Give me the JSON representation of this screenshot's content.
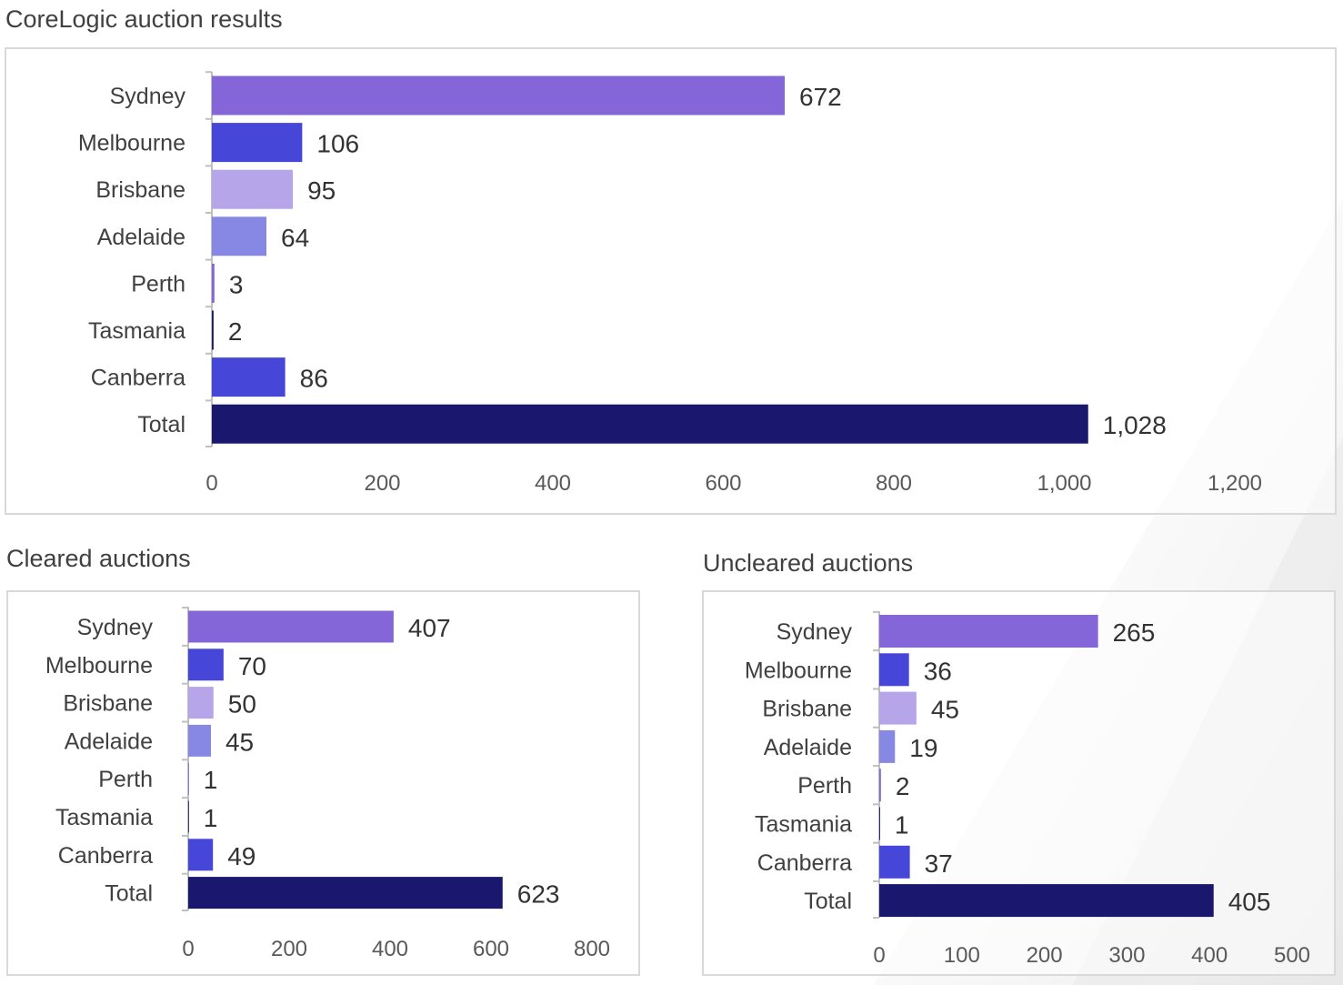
{
  "colors": {
    "sydney": "#8466d8",
    "melbourne": "#4647d9",
    "brisbane": "#b7a5e9",
    "adelaide": "#8688e4",
    "perth": "#8466d8",
    "tasmania": "#1a1a6e",
    "canberra": "#4647d9",
    "total": "#1a186e",
    "axis": "#bfbfbf",
    "text": "#404040"
  },
  "chart_data": [
    {
      "type": "bar",
      "orientation": "horizontal",
      "title": "CoreLogic auction results",
      "categories": [
        "Sydney",
        "Melbourne",
        "Brisbane",
        "Adelaide",
        "Perth",
        "Tasmania",
        "Canberra",
        "Total"
      ],
      "values": [
        672,
        106,
        95,
        64,
        3,
        2,
        86,
        1028
      ],
      "value_labels": [
        "672",
        "106",
        "95",
        "64",
        "3",
        "2",
        "86",
        "1,028"
      ],
      "xlim": [
        0,
        1200
      ],
      "xticks": [
        "0",
        "200",
        "400",
        "600",
        "800",
        "1,000",
        "1,200"
      ],
      "xtick_values": [
        0,
        200,
        400,
        600,
        800,
        1000,
        1200
      ],
      "grid": false,
      "legend": "none"
    },
    {
      "type": "bar",
      "orientation": "horizontal",
      "title": "Cleared auctions",
      "categories": [
        "Sydney",
        "Melbourne",
        "Brisbane",
        "Adelaide",
        "Perth",
        "Tasmania",
        "Canberra",
        "Total"
      ],
      "values": [
        407,
        70,
        50,
        45,
        1,
        1,
        49,
        623
      ],
      "value_labels": [
        "407",
        "70",
        "50",
        "45",
        "1",
        "1",
        "49",
        "623"
      ],
      "xlim": [
        0,
        800
      ],
      "xticks": [
        "0",
        "200",
        "400",
        "600",
        "800"
      ],
      "xtick_values": [
        0,
        200,
        400,
        600,
        800
      ],
      "grid": false,
      "legend": "none"
    },
    {
      "type": "bar",
      "orientation": "horizontal",
      "title": "Uncleared auctions",
      "categories": [
        "Sydney",
        "Melbourne",
        "Brisbane",
        "Adelaide",
        "Perth",
        "Tasmania",
        "Canberra",
        "Total"
      ],
      "values": [
        265,
        36,
        45,
        19,
        2,
        1,
        37,
        405
      ],
      "value_labels": [
        "265",
        "36",
        "45",
        "19",
        "2",
        "1",
        "37",
        "405"
      ],
      "xlim": [
        0,
        500
      ],
      "xticks": [
        "0",
        "100",
        "200",
        "300",
        "400",
        "500"
      ],
      "xtick_values": [
        0,
        100,
        200,
        300,
        400,
        500
      ],
      "grid": false,
      "legend": "none"
    }
  ]
}
